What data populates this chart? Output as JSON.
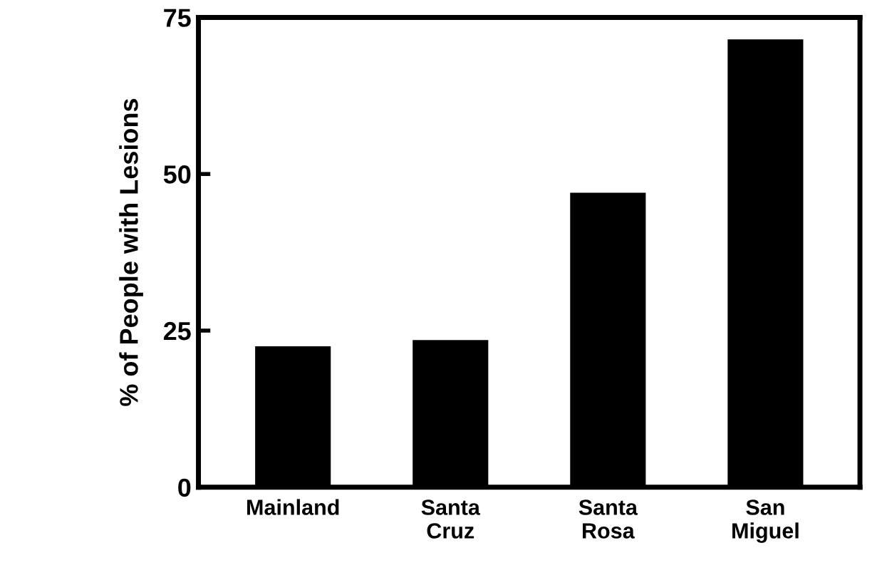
{
  "chart_data": {
    "type": "bar",
    "ylabel": "% of People with Lesions",
    "categories": [
      "Mainland",
      "Santa\nCruz",
      "Santa\nRosa",
      "San\nMiguel"
    ],
    "values": [
      22.5,
      23.5,
      47,
      71.5
    ],
    "color": "#000000",
    "ylim": [
      0,
      75
    ],
    "yticks": [
      0,
      25,
      50,
      75
    ],
    "grid": false,
    "legend": false
  }
}
